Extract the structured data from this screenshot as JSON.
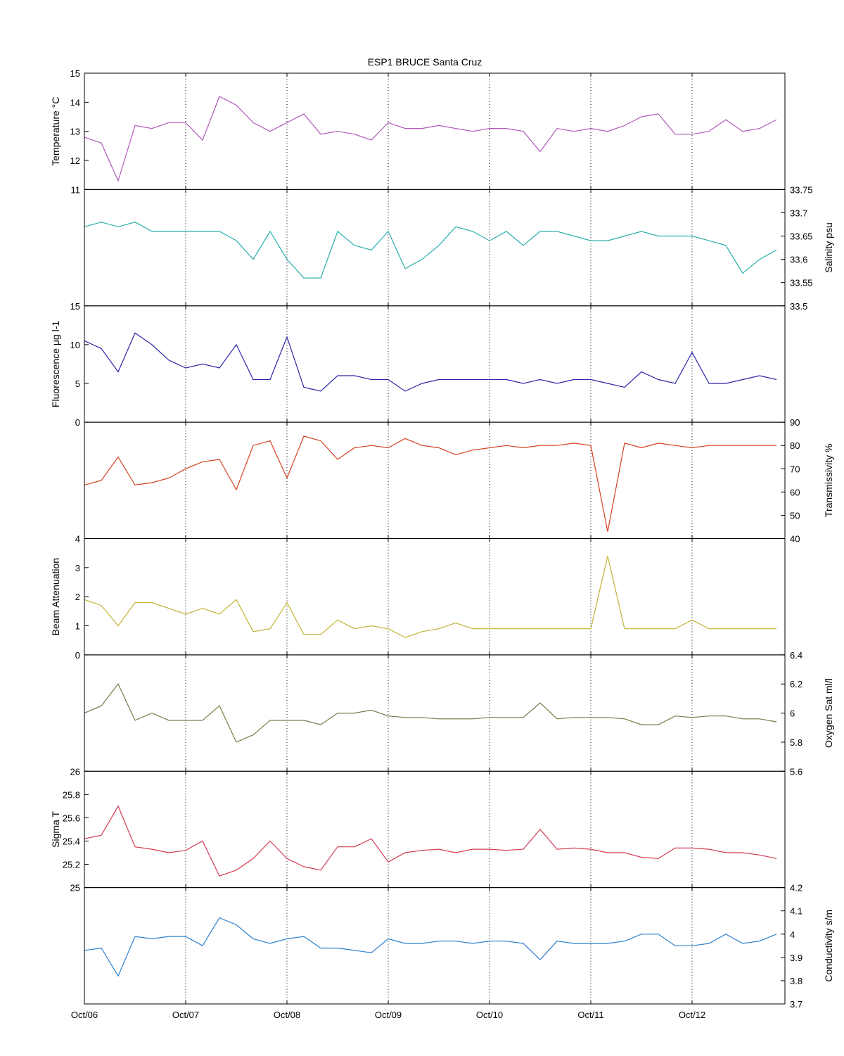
{
  "chart_data": {
    "type": "line",
    "title": "ESP1 BRUCE Santa Cruz",
    "x_ticks": [
      "Oct/06",
      "Oct/07",
      "Oct/08",
      "Oct/09",
      "Oct/10",
      "Oct/11",
      "Oct/12"
    ],
    "xlim": [
      "2006-10",
      "2013-09"
    ],
    "grid": "vertical dotted at x ticks",
    "panels": [
      {
        "ylabel": "Temperature °C",
        "axis_side": "left",
        "ylim": [
          11,
          15
        ],
        "yticks": [
          "11",
          "12",
          "13",
          "14",
          "15"
        ],
        "color": "#b05ab8",
        "x": [
          "2006-10",
          "2006-12",
          "2007-02",
          "2007-04",
          "2007-06",
          "2007-08",
          "2007-10",
          "2007-12",
          "2008-02",
          "2008-04",
          "2008-06",
          "2008-08",
          "2008-10",
          "2008-12",
          "2009-02",
          "2009-04",
          "2009-06",
          "2009-08",
          "2009-10",
          "2009-12",
          "2010-02",
          "2010-04",
          "2010-06",
          "2010-08",
          "2010-10",
          "2010-12",
          "2011-02",
          "2011-04",
          "2011-06",
          "2011-08",
          "2011-10",
          "2011-12",
          "2012-02",
          "2012-04",
          "2012-06",
          "2012-08",
          "2012-10",
          "2012-12",
          "2013-02",
          "2013-04",
          "2013-06",
          "2013-08"
        ],
        "values": [
          12.8,
          12.6,
          11.3,
          13.2,
          13.1,
          13.3,
          13.3,
          12.7,
          14.2,
          13.9,
          13.3,
          13.0,
          13.3,
          13.6,
          12.9,
          13.0,
          12.9,
          12.7,
          13.3,
          13.1,
          13.1,
          13.2,
          13.1,
          13.0,
          13.1,
          13.1,
          13.0,
          12.3,
          13.1,
          13.0,
          13.1,
          13.0,
          13.2,
          13.5,
          13.6,
          12.9,
          12.9,
          13.0,
          13.4,
          13.0,
          13.1,
          13.4
        ]
      },
      {
        "ylabel": "Salinity psu",
        "axis_side": "right",
        "ylim": [
          33.5,
          33.75
        ],
        "yticks": [
          "33.5",
          "33.55",
          "33.6",
          "33.65",
          "33.7",
          "33.75"
        ],
        "color": "#2aaeaa",
        "x": [
          "2006-10",
          "2006-12",
          "2007-02",
          "2007-04",
          "2007-06",
          "2007-08",
          "2007-10",
          "2007-12",
          "2008-02",
          "2008-04",
          "2008-06",
          "2008-08",
          "2008-10",
          "2008-12",
          "2009-02",
          "2009-04",
          "2009-06",
          "2009-08",
          "2009-10",
          "2009-12",
          "2010-02",
          "2010-04",
          "2010-06",
          "2010-08",
          "2010-10",
          "2010-12",
          "2011-02",
          "2011-04",
          "2011-06",
          "2011-08",
          "2011-10",
          "2011-12",
          "2012-02",
          "2012-04",
          "2012-06",
          "2012-08",
          "2012-10",
          "2012-12",
          "2013-02",
          "2013-04",
          "2013-06",
          "2013-08"
        ],
        "values": [
          33.67,
          33.68,
          33.67,
          33.68,
          33.66,
          33.66,
          33.66,
          33.66,
          33.66,
          33.64,
          33.6,
          33.66,
          33.6,
          33.56,
          33.56,
          33.66,
          33.63,
          33.62,
          33.66,
          33.58,
          33.6,
          33.63,
          33.67,
          33.66,
          33.64,
          33.66,
          33.63,
          33.66,
          33.66,
          33.65,
          33.64,
          33.64,
          33.65,
          33.66,
          33.65,
          33.65,
          33.65,
          33.64,
          33.63,
          33.57,
          33.6,
          33.62
        ]
      },
      {
        "ylabel": "Fluorescence μg l-1",
        "axis_side": "left",
        "ylim": [
          0,
          15
        ],
        "yticks": [
          "0",
          "5",
          "10",
          "15"
        ],
        "color": "#2a25a8",
        "x": [
          "2006-10",
          "2006-12",
          "2007-02",
          "2007-04",
          "2007-06",
          "2007-08",
          "2007-10",
          "2007-12",
          "2008-02",
          "2008-04",
          "2008-06",
          "2008-08",
          "2008-10",
          "2008-12",
          "2009-02",
          "2009-04",
          "2009-06",
          "2009-08",
          "2009-10",
          "2009-12",
          "2010-02",
          "2010-04",
          "2010-06",
          "2010-08",
          "2010-10",
          "2010-12",
          "2011-02",
          "2011-04",
          "2011-06",
          "2011-08",
          "2011-10",
          "2011-12",
          "2012-02",
          "2012-04",
          "2012-06",
          "2012-08",
          "2012-10",
          "2012-12",
          "2013-02",
          "2013-04",
          "2013-06",
          "2013-08"
        ],
        "values": [
          10.5,
          9.5,
          6.5,
          11.5,
          10.0,
          8.0,
          7.0,
          7.5,
          7.0,
          10.0,
          5.5,
          5.5,
          11.0,
          4.5,
          4.0,
          6.0,
          6.0,
          5.5,
          5.5,
          4.0,
          5.0,
          5.5,
          5.5,
          5.5,
          5.5,
          5.5,
          5.0,
          5.5,
          5.0,
          5.5,
          5.5,
          5.0,
          4.5,
          6.5,
          5.5,
          5.0,
          9.0,
          5.0,
          5.0,
          5.5,
          6.0,
          5.5
        ]
      },
      {
        "ylabel": "Transmissivity %",
        "axis_side": "right",
        "ylim": [
          40,
          90
        ],
        "yticks": [
          "40",
          "50",
          "60",
          "70",
          "80",
          "90"
        ],
        "color": "#d4401e",
        "x": [
          "2006-10",
          "2006-12",
          "2007-02",
          "2007-04",
          "2007-06",
          "2007-08",
          "2007-10",
          "2007-12",
          "2008-02",
          "2008-04",
          "2008-06",
          "2008-08",
          "2008-10",
          "2008-12",
          "2009-02",
          "2009-04",
          "2009-06",
          "2009-08",
          "2009-10",
          "2009-12",
          "2010-02",
          "2010-04",
          "2010-06",
          "2010-08",
          "2010-10",
          "2010-12",
          "2011-02",
          "2011-04",
          "2011-06",
          "2011-08",
          "2011-10",
          "2011-12",
          "2012-02",
          "2012-04",
          "2012-06",
          "2012-08",
          "2012-10",
          "2012-12",
          "2013-02",
          "2013-04",
          "2013-06",
          "2013-08"
        ],
        "values": [
          63,
          65,
          75,
          63,
          64,
          66,
          70,
          73,
          74,
          61,
          80,
          82,
          66,
          84,
          82,
          74,
          79,
          80,
          79,
          83,
          80,
          79,
          76,
          78,
          79,
          80,
          79,
          80,
          80,
          81,
          80,
          43,
          81,
          79,
          81,
          80,
          79,
          80,
          80,
          80,
          80,
          80
        ]
      },
      {
        "ylabel": "Beam Attenuation",
        "axis_side": "left",
        "ylim": [
          0,
          4
        ],
        "yticks": [
          "0",
          "1",
          "2",
          "3",
          "4"
        ],
        "color": "#c4b234",
        "x": [
          "2006-10",
          "2006-12",
          "2007-02",
          "2007-04",
          "2007-06",
          "2007-08",
          "2007-10",
          "2007-12",
          "2008-02",
          "2008-04",
          "2008-06",
          "2008-08",
          "2008-10",
          "2008-12",
          "2009-02",
          "2009-04",
          "2009-06",
          "2009-08",
          "2009-10",
          "2009-12",
          "2010-02",
          "2010-04",
          "2010-06",
          "2010-08",
          "2010-10",
          "2010-12",
          "2011-02",
          "2011-04",
          "2011-06",
          "2011-08",
          "2011-10",
          "2011-12",
          "2012-02",
          "2012-04",
          "2012-06",
          "2012-08",
          "2012-10",
          "2012-12",
          "2013-02",
          "2013-04",
          "2013-06",
          "2013-08"
        ],
        "values": [
          1.9,
          1.7,
          1.0,
          1.8,
          1.8,
          1.6,
          1.4,
          1.6,
          1.4,
          1.9,
          0.8,
          0.9,
          1.8,
          0.7,
          0.7,
          1.2,
          0.9,
          1.0,
          0.9,
          0.6,
          0.8,
          0.9,
          1.1,
          0.9,
          0.9,
          0.9,
          0.9,
          0.9,
          0.9,
          0.9,
          0.9,
          3.4,
          0.9,
          0.9,
          0.9,
          0.9,
          1.2,
          0.9,
          0.9,
          0.9,
          0.9,
          0.9
        ]
      },
      {
        "ylabel": "Oxygen Sat ml/l",
        "axis_side": "right",
        "ylim": [
          5.6,
          6.4
        ],
        "yticks": [
          "5.6",
          "5.8",
          "6",
          "6.2",
          "6.4"
        ],
        "color": "#7c7848",
        "x": [
          "2006-10",
          "2006-12",
          "2007-02",
          "2007-04",
          "2007-06",
          "2007-08",
          "2007-10",
          "2007-12",
          "2008-02",
          "2008-04",
          "2008-06",
          "2008-08",
          "2008-10",
          "2008-12",
          "2009-02",
          "2009-04",
          "2009-06",
          "2009-08",
          "2009-10",
          "2009-12",
          "2010-02",
          "2010-04",
          "2010-06",
          "2010-08",
          "2010-10",
          "2010-12",
          "2011-02",
          "2011-04",
          "2011-06",
          "2011-08",
          "2011-10",
          "2011-12",
          "2012-02",
          "2012-04",
          "2012-06",
          "2012-08",
          "2012-10",
          "2012-12",
          "2013-02",
          "2013-04",
          "2013-06",
          "2013-08"
        ],
        "values": [
          6.0,
          6.05,
          6.2,
          5.95,
          6.0,
          5.95,
          5.95,
          5.95,
          6.05,
          5.8,
          5.85,
          5.95,
          5.95,
          5.95,
          5.92,
          6.0,
          6.0,
          6.02,
          5.98,
          5.97,
          5.97,
          5.96,
          5.96,
          5.96,
          5.97,
          5.97,
          5.97,
          6.07,
          5.96,
          5.97,
          5.97,
          5.97,
          5.96,
          5.92,
          5.92,
          5.98,
          5.97,
          5.98,
          5.98,
          5.96,
          5.96,
          5.94
        ]
      },
      {
        "ylabel": "Sigma T",
        "axis_side": "left",
        "ylim": [
          25,
          26
        ],
        "yticks": [
          "25",
          "25.2",
          "25.4",
          "25.6",
          "25.8",
          "26"
        ],
        "color": "#d23a52",
        "x": [
          "2006-10",
          "2006-12",
          "2007-02",
          "2007-04",
          "2007-06",
          "2007-08",
          "2007-10",
          "2007-12",
          "2008-02",
          "2008-04",
          "2008-06",
          "2008-08",
          "2008-10",
          "2008-12",
          "2009-02",
          "2009-04",
          "2009-06",
          "2009-08",
          "2009-10",
          "2009-12",
          "2010-02",
          "2010-04",
          "2010-06",
          "2010-08",
          "2010-10",
          "2010-12",
          "2011-02",
          "2011-04",
          "2011-06",
          "2011-08",
          "2011-10",
          "2011-12",
          "2012-02",
          "2012-04",
          "2012-06",
          "2012-08",
          "2012-10",
          "2012-12",
          "2013-02",
          "2013-04",
          "2013-06",
          "2013-08"
        ],
        "values": [
          25.42,
          25.45,
          25.7,
          25.35,
          25.33,
          25.3,
          25.32,
          25.4,
          25.1,
          25.15,
          25.25,
          25.4,
          25.25,
          25.18,
          25.15,
          25.35,
          25.35,
          25.42,
          25.22,
          25.3,
          25.32,
          25.33,
          25.3,
          25.33,
          25.33,
          25.32,
          25.33,
          25.5,
          25.33,
          25.34,
          25.33,
          25.3,
          25.3,
          25.26,
          25.25,
          25.34,
          25.34,
          25.33,
          25.3,
          25.3,
          25.28,
          25.25
        ]
      },
      {
        "ylabel": "Conductivity s/m",
        "axis_side": "right",
        "ylim": [
          3.7,
          4.2
        ],
        "yticks": [
          "3.7",
          "3.8",
          "3.9",
          "4",
          "4.1",
          "4.2"
        ],
        "color": "#2b80d0",
        "x": [
          "2006-10",
          "2006-12",
          "2007-02",
          "2007-04",
          "2007-06",
          "2007-08",
          "2007-10",
          "2007-12",
          "2008-02",
          "2008-04",
          "2008-06",
          "2008-08",
          "2008-10",
          "2008-12",
          "2009-02",
          "2009-04",
          "2009-06",
          "2009-08",
          "2009-10",
          "2009-12",
          "2010-02",
          "2010-04",
          "2010-06",
          "2010-08",
          "2010-10",
          "2010-12",
          "2011-02",
          "2011-04",
          "2011-06",
          "2011-08",
          "2011-10",
          "2011-12",
          "2012-02",
          "2012-04",
          "2012-06",
          "2012-08",
          "2012-10",
          "2012-12",
          "2013-02",
          "2013-04",
          "2013-06",
          "2013-08"
        ],
        "values": [
          3.93,
          3.94,
          3.82,
          3.99,
          3.98,
          3.99,
          3.99,
          3.95,
          4.07,
          4.04,
          3.98,
          3.96,
          3.98,
          3.99,
          3.94,
          3.94,
          3.93,
          3.92,
          3.98,
          3.96,
          3.96,
          3.97,
          3.97,
          3.96,
          3.97,
          3.97,
          3.96,
          3.89,
          3.97,
          3.96,
          3.96,
          3.96,
          3.97,
          4.0,
          4.0,
          3.95,
          3.95,
          3.96,
          4.0,
          3.96,
          3.97,
          4.0
        ]
      }
    ]
  }
}
